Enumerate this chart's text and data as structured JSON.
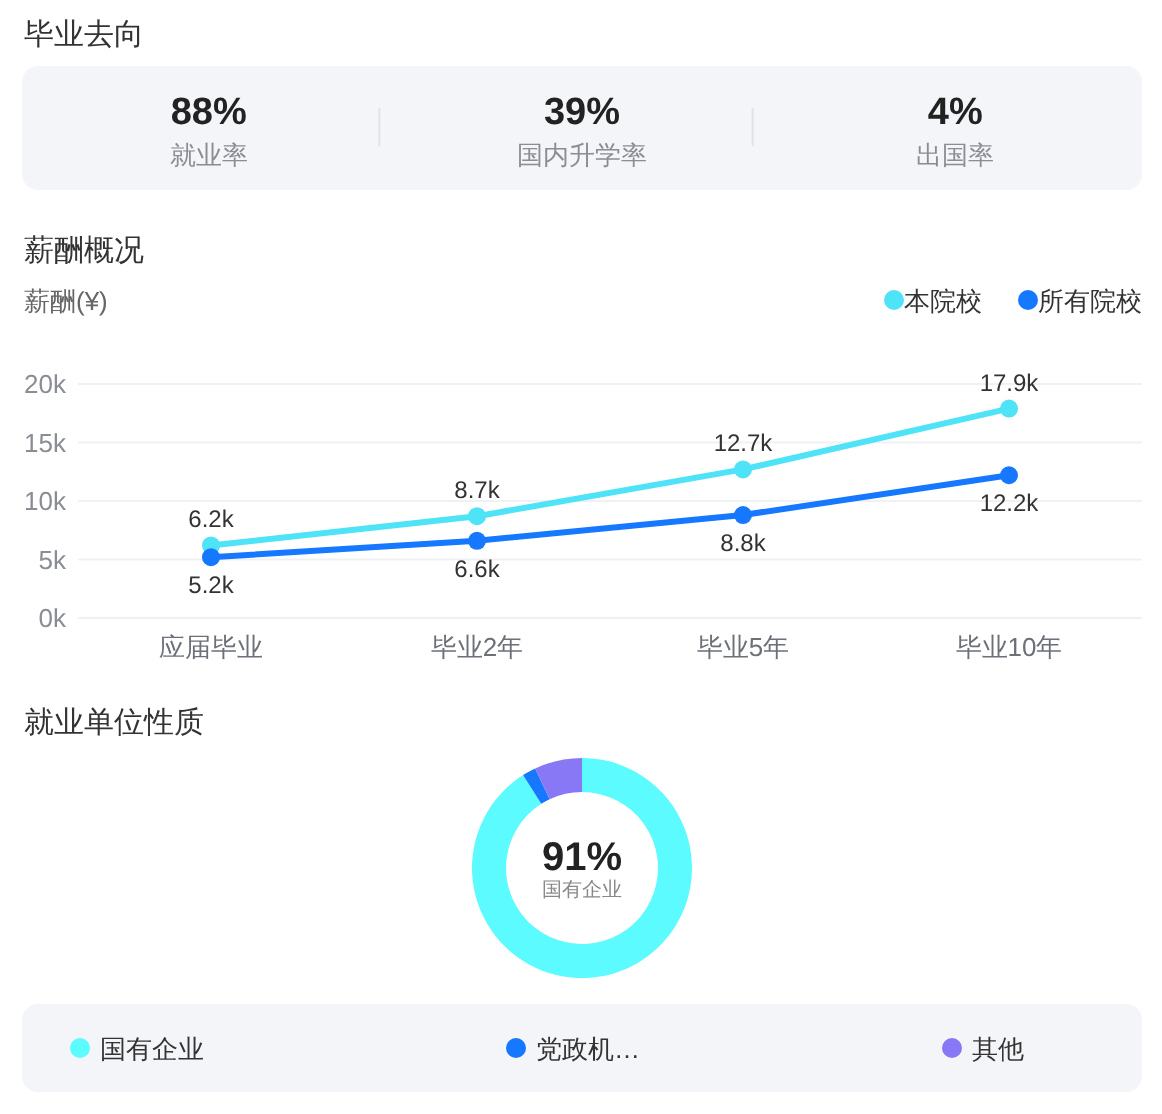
{
  "chart_data": [
    {
      "type": "other",
      "title": "毕业去向",
      "categories": [
        "就业率",
        "国内升学率",
        "出国率"
      ],
      "value_labels": [
        "88%",
        "39%",
        "4%"
      ]
    },
    {
      "type": "line",
      "title": "薪酬概况",
      "ylabel": "薪酬(¥)",
      "categories": [
        "应届毕业",
        "毕业2年",
        "毕业5年",
        "毕业10年"
      ],
      "series": [
        {
          "name": "本院校",
          "color": "#4fe3f8",
          "values": [
            6200,
            8700,
            12700,
            17900
          ],
          "value_labels": [
            "6.2k",
            "8.7k",
            "12.7k",
            "17.9k"
          ]
        },
        {
          "name": "所有院校",
          "color": "#1677ff",
          "values": [
            5200,
            6600,
            8800,
            12200
          ],
          "value_labels": [
            "5.2k",
            "6.6k",
            "8.8k",
            "12.2k"
          ]
        }
      ],
      "ylim": [
        0,
        20000
      ],
      "yticks": [
        {
          "value": 0,
          "label": "0k"
        },
        {
          "value": 5000,
          "label": "5k"
        },
        {
          "value": 10000,
          "label": "10k"
        },
        {
          "value": 15000,
          "label": "15k"
        },
        {
          "value": 20000,
          "label": "20k"
        }
      ],
      "grid": "y",
      "legend": "top right",
      "marker": "circle",
      "line_style": "solid"
    },
    {
      "type": "donut",
      "title": "就业单位性质",
      "categories": [
        "国有企业",
        "党政机…",
        "其他"
      ],
      "values": [
        91,
        2,
        7
      ],
      "colors": [
        "#5cfbff",
        "#1677ff",
        "#8878f6"
      ],
      "annotations": [
        "91%",
        "国有企业"
      ],
      "legend": "bottom"
    }
  ]
}
